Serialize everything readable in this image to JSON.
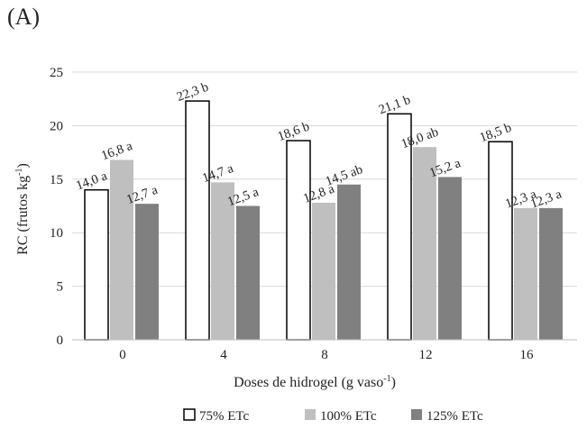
{
  "panel_label": "(A)",
  "chart_data": {
    "type": "bar",
    "categories": [
      "0",
      "4",
      "8",
      "12",
      "16"
    ],
    "series": [
      {
        "name": "75% ETc",
        "color": "#ffffff",
        "stroke": "#000000",
        "values": [
          14.0,
          22.3,
          18.6,
          21.1,
          18.5
        ],
        "labels": [
          "14,0 a",
          "22,3 b",
          "18,6 b",
          "21,1 b",
          "18,5 b"
        ]
      },
      {
        "name": "100% ETc",
        "color": "#bfbfbf",
        "stroke": "none",
        "values": [
          16.8,
          14.7,
          12.8,
          18.0,
          12.3
        ],
        "labels": [
          "16,8 a",
          "14,7 a",
          "12,8 a",
          "18,0 ab",
          "12,3 a"
        ]
      },
      {
        "name": "125% ETc",
        "color": "#808080",
        "stroke": "none",
        "values": [
          12.7,
          12.5,
          14.5,
          15.2,
          12.3
        ],
        "labels": [
          "12,7 a",
          "12,5 a",
          "14,5 ab",
          "15,2 a",
          "12,3 a"
        ]
      }
    ],
    "ylim": [
      0,
      25
    ],
    "yticks": [
      0,
      5,
      10,
      15,
      20,
      25
    ],
    "ylabel": "RC (frutos kg",
    "ylabel_sup": "-1",
    "ylabel_end": ")",
    "xlabel": "Doses de hidrogel (g vaso",
    "xlabel_sup": "-1",
    "xlabel_end": ")",
    "grid": true,
    "legend_position": "bottom"
  }
}
